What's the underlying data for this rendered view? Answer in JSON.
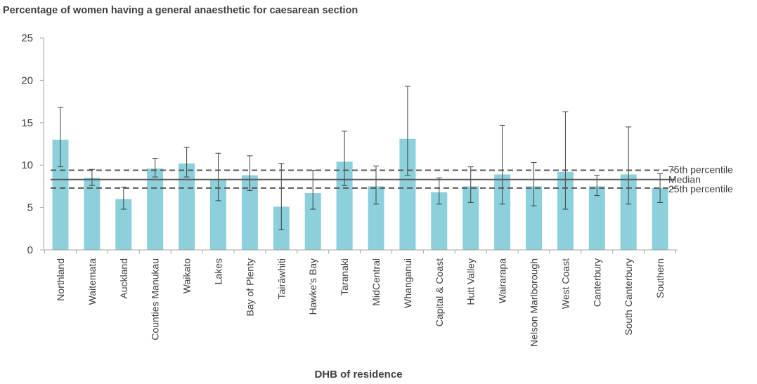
{
  "chart_data": {
    "type": "bar",
    "title": "Percentage of women having a general anaesthetic for caesarean section",
    "xlabel": "DHB of residence",
    "ylabel": "",
    "ylim": [
      0,
      25
    ],
    "yticks": [
      0,
      5,
      10,
      15,
      20,
      25
    ],
    "grid": false,
    "categories": [
      "Northland",
      "Waitemata",
      "Auckland",
      "Counties Manukau",
      "Waikato",
      "Lakes",
      "Bay of Plenty",
      "Tairāwhiti",
      "Hawke's Bay",
      "Taranaki",
      "MidCentral",
      "Whanganui",
      "Capital & Coast",
      "Hutt Valley",
      "Wairarapa",
      "Nelson Marlborough",
      "West Coast",
      "Canterbury",
      "South Canterbury",
      "Southern"
    ],
    "values": [
      13.0,
      8.5,
      6.0,
      9.6,
      10.2,
      8.3,
      8.8,
      5.1,
      6.7,
      10.4,
      7.5,
      13.1,
      6.8,
      7.5,
      8.9,
      7.5,
      9.2,
      7.5,
      8.9,
      7.3
    ],
    "error_low": [
      9.8,
      7.6,
      4.8,
      8.6,
      8.6,
      5.8,
      7.0,
      2.4,
      4.8,
      7.6,
      5.4,
      8.8,
      5.4,
      5.6,
      5.4,
      5.2,
      4.8,
      6.4,
      5.4,
      5.6
    ],
    "error_high": [
      16.8,
      9.5,
      7.4,
      10.8,
      12.1,
      11.4,
      11.1,
      10.2,
      9.4,
      14.0,
      9.9,
      19.3,
      8.5,
      9.8,
      14.7,
      10.3,
      16.3,
      8.8,
      14.5,
      9.0
    ],
    "reference_lines": [
      {
        "name": "75th percentile",
        "value": 9.4,
        "style": "dashed"
      },
      {
        "name": "Median",
        "value": 8.3,
        "style": "solid"
      },
      {
        "name": "25th percentile",
        "value": 7.3,
        "style": "dashed"
      }
    ],
    "colors": {
      "bar": "#8cd0dc",
      "error": "#404040",
      "reference": "#595959",
      "axis": "#a6a6a6"
    }
  }
}
